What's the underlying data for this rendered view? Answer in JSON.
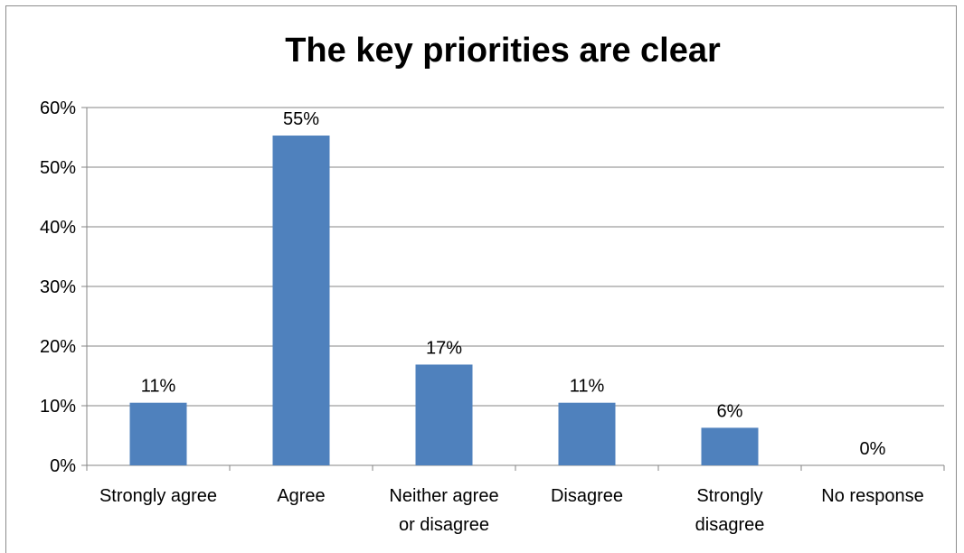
{
  "chart_data": {
    "type": "bar",
    "title": "The key priorities are clear",
    "xlabel": "",
    "ylabel": "",
    "categories": [
      [
        "Strongly agree"
      ],
      [
        "Agree"
      ],
      [
        "Neither agree",
        "or disagree"
      ],
      [
        "Disagree"
      ],
      [
        "Strongly",
        "disagree"
      ],
      [
        "No response"
      ]
    ],
    "values": [
      10.5,
      55.3,
      16.9,
      10.5,
      6.3,
      0
    ],
    "data_labels": [
      "11%",
      "55%",
      "17%",
      "11%",
      "6%",
      "0%"
    ],
    "ylim": [
      0,
      60
    ],
    "yticks": [
      0,
      10,
      20,
      30,
      40,
      50,
      60
    ],
    "ytick_labels": [
      "0%",
      "10%",
      "20%",
      "30%",
      "40%",
      "50%",
      "60%"
    ],
    "grid": true,
    "legend": "none",
    "colors": {
      "bar": "#4f81bd",
      "grid": "#868686",
      "axis": "#868686",
      "frame": "#8c8c8c"
    }
  }
}
